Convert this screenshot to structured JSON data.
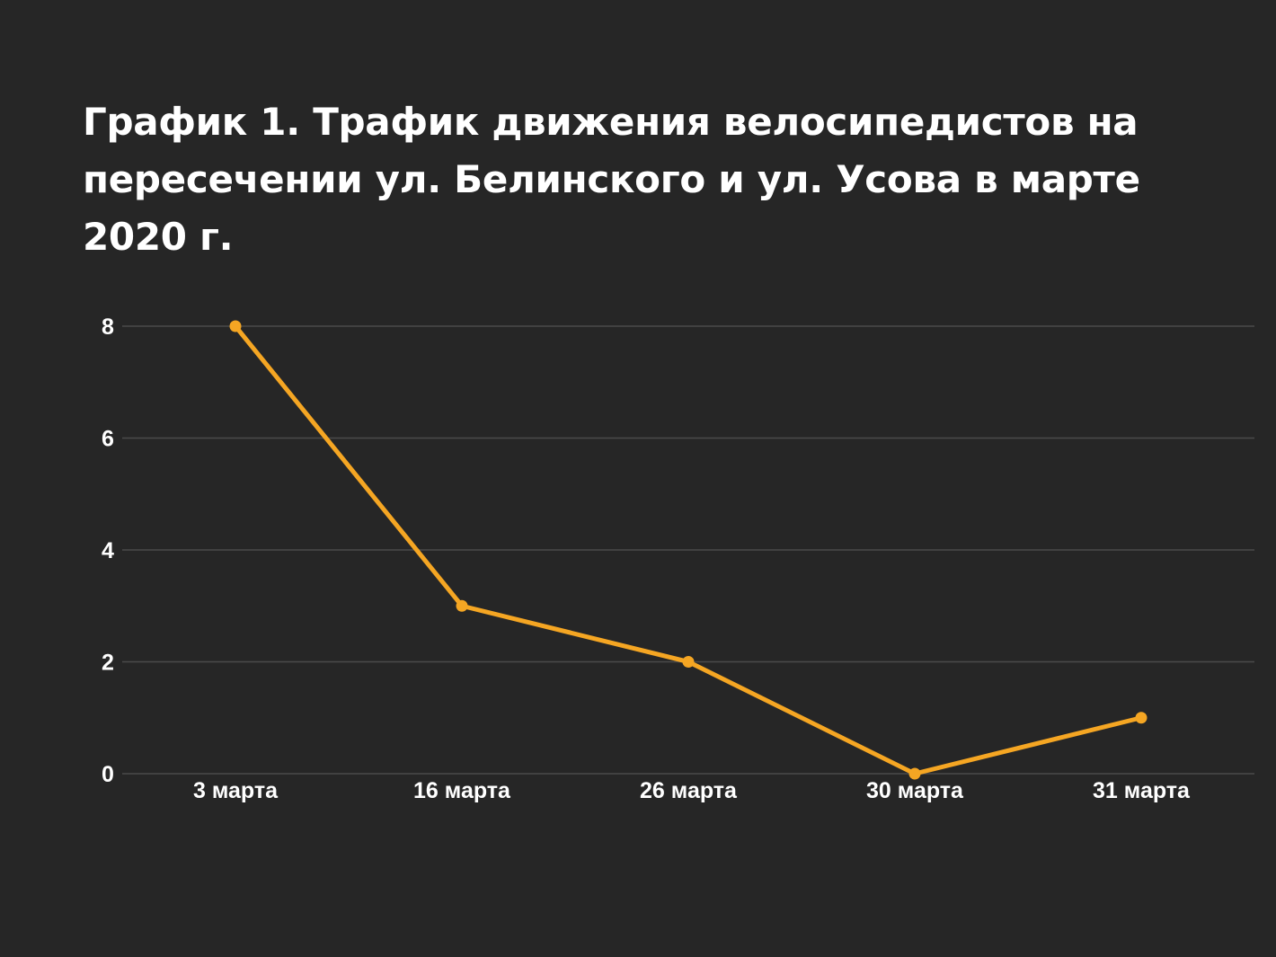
{
  "colors": {
    "background": "#262626",
    "line": "#F5A623",
    "grid": "#4a4a4a",
    "text": "#ffffff"
  },
  "chart_data": {
    "type": "line",
    "title": "График 1. Трафик движения велосипедистов на пересечении ул. Белинского и ул. Усова в марте 2020 г.",
    "xlabel": "",
    "ylabel": "",
    "categories": [
      "3 марта",
      "16 марта",
      "26 марта",
      "30 марта",
      "31 марта"
    ],
    "series": [
      {
        "values": [
          8,
          3,
          2,
          0,
          1
        ]
      }
    ],
    "ylim": [
      0,
      8
    ],
    "yticks": [
      0,
      2,
      4,
      6,
      8
    ],
    "grid": true,
    "legend": "none"
  }
}
